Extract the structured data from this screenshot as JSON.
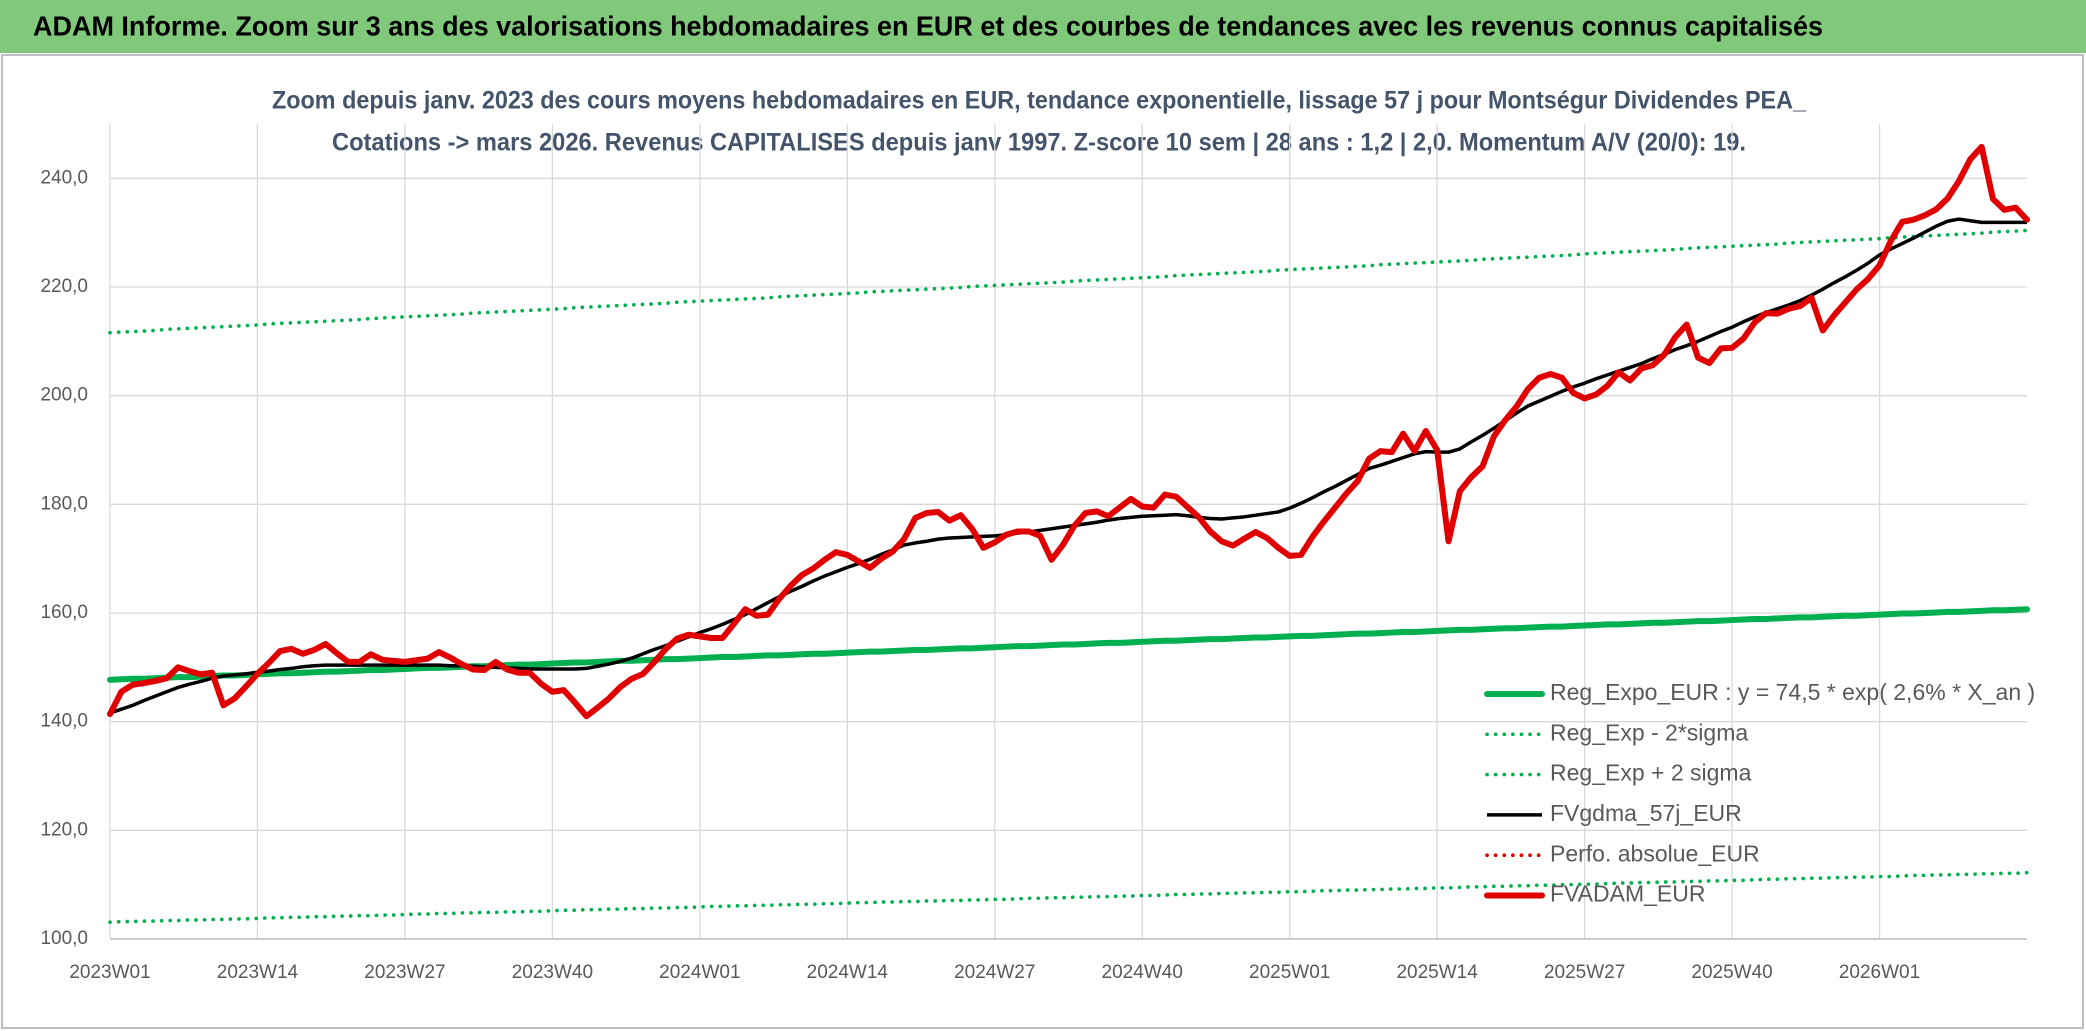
{
  "chart_data": {
    "type": "line",
    "title": "ADAM Informe. Zoom sur 3 ans des valorisations hebdomadaires en EUR et des courbes de tendances avec les revenus connus capitalisés",
    "subtitle": [
      "Zoom depuis janv. 2023 des cours moyens hebdomadaires en EUR, tendance exponentielle, lissage 57 j pour Montségur Dividendes PEA_",
      "Cotations -> mars 2026. Revenus CAPITALISES depuis janv 1997. Z-score 10 sem | 28 ans : 1,2 | 2,0. Momentum A/V (20/0): 19."
    ],
    "categories": [
      "2023W01",
      null,
      null,
      null,
      null,
      null,
      null,
      null,
      null,
      null,
      null,
      null,
      null,
      "2023W14",
      null,
      null,
      null,
      null,
      null,
      null,
      null,
      null,
      null,
      null,
      null,
      null,
      "2023W27",
      null,
      null,
      null,
      null,
      null,
      null,
      null,
      null,
      null,
      null,
      null,
      null,
      "2023W40",
      null,
      null,
      null,
      null,
      null,
      null,
      null,
      null,
      null,
      null,
      null,
      null,
      "2024W01",
      null,
      null,
      null,
      null,
      null,
      null,
      null,
      null,
      null,
      null,
      null,
      null,
      "2024W14",
      null,
      null,
      null,
      null,
      null,
      null,
      null,
      null,
      null,
      null,
      null,
      null,
      "2024W27",
      null,
      null,
      null,
      null,
      null,
      null,
      null,
      null,
      null,
      null,
      null,
      null,
      "2024W40",
      null,
      null,
      null,
      null,
      null,
      null,
      null,
      null,
      null,
      null,
      null,
      null,
      "2025W01",
      null,
      null,
      null,
      null,
      null,
      null,
      null,
      null,
      null,
      null,
      null,
      null,
      "2025W14",
      null,
      null,
      null,
      null,
      null,
      null,
      null,
      null,
      null,
      null,
      null,
      null,
      "2025W27",
      null,
      null,
      null,
      null,
      null,
      null,
      null,
      null,
      null,
      null,
      null,
      null,
      "2025W40",
      null,
      null,
      null,
      null,
      null,
      null,
      null,
      null,
      null,
      null,
      null,
      null,
      "2026W01",
      null,
      null,
      null,
      null,
      null,
      null,
      null,
      null,
      null,
      null,
      null,
      null,
      null
    ],
    "ylim": [
      100,
      250
    ],
    "yticks": [
      {
        "value": 100,
        "label": "100,0"
      },
      {
        "value": 120,
        "label": "120,0"
      },
      {
        "value": 140,
        "label": "140,0"
      },
      {
        "value": 160,
        "label": "160,0"
      },
      {
        "value": 180,
        "label": "180,0"
      },
      {
        "value": 200,
        "label": "200,0"
      },
      {
        "value": 220,
        "label": "220,0"
      },
      {
        "value": 240,
        "label": "240,0"
      }
    ],
    "grid": true,
    "legend": "bottom-right",
    "series": [
      {
        "name": "Reg_Expo_EUR : y = 74,5 * exp( 2,6% *  X_an )",
        "color": "#00b050",
        "line_style": "thick",
        "values": [
          147.7,
          147.8,
          147.9,
          147.9,
          148.0,
          148.1,
          148.2,
          148.2,
          148.3,
          148.4,
          148.5,
          148.5,
          148.6,
          148.7,
          148.8,
          148.9,
          148.9,
          149.0,
          149.1,
          149.2,
          149.2,
          149.3,
          149.4,
          149.5,
          149.5,
          149.6,
          149.7,
          149.8,
          149.9,
          149.9,
          150.0,
          150.1,
          150.2,
          150.2,
          150.3,
          150.4,
          150.5,
          150.5,
          150.6,
          150.7,
          150.8,
          150.9,
          150.9,
          151.0,
          151.1,
          151.2,
          151.2,
          151.3,
          151.4,
          151.5,
          151.5,
          151.6,
          151.7,
          151.8,
          151.9,
          151.9,
          152.0,
          152.1,
          152.2,
          152.2,
          152.3,
          152.4,
          152.5,
          152.5,
          152.6,
          152.7,
          152.8,
          152.9,
          152.9,
          153.0,
          153.1,
          153.2,
          153.2,
          153.3,
          153.4,
          153.5,
          153.5,
          153.6,
          153.7,
          153.8,
          153.9,
          153.9,
          154.0,
          154.1,
          154.2,
          154.2,
          154.3,
          154.4,
          154.5,
          154.5,
          154.6,
          154.7,
          154.8,
          154.9,
          154.9,
          155.0,
          155.1,
          155.2,
          155.2,
          155.3,
          155.4,
          155.5,
          155.5,
          155.6,
          155.7,
          155.8,
          155.8,
          155.9,
          156.0,
          156.1,
          156.2,
          156.2,
          156.3,
          156.4,
          156.5,
          156.5,
          156.6,
          156.7,
          156.8,
          156.9,
          156.9,
          157.0,
          157.1,
          157.2,
          157.2,
          157.3,
          157.4,
          157.5,
          157.5,
          157.6,
          157.7,
          157.8,
          157.9,
          157.9,
          158.0,
          158.1,
          158.2,
          158.2,
          158.3,
          158.4,
          158.5,
          158.5,
          158.6,
          158.7,
          158.8,
          158.9,
          158.9,
          159.0,
          159.1,
          159.2,
          159.2,
          159.3,
          159.4,
          159.5,
          159.5,
          159.6,
          159.7,
          159.8,
          159.9,
          159.9,
          160.0,
          160.1,
          160.2,
          160.2,
          160.3,
          160.4,
          160.5,
          160.5,
          160.6,
          160.7
        ]
      },
      {
        "name": "Reg_Exp - 2*sigma",
        "color": "#00b050",
        "line_style": "dotted",
        "values": [
          103.1,
          103.2,
          103.2,
          103.3,
          103.3,
          103.4,
          103.4,
          103.5,
          103.5,
          103.6,
          103.6,
          103.7,
          103.7,
          103.8,
          103.9,
          103.9,
          104.0,
          104.0,
          104.1,
          104.1,
          104.2,
          104.2,
          104.3,
          104.3,
          104.4,
          104.4,
          104.5,
          104.6,
          104.6,
          104.7,
          104.7,
          104.8,
          104.8,
          104.9,
          104.9,
          105.0,
          105.0,
          105.1,
          105.1,
          105.2,
          105.3,
          105.3,
          105.4,
          105.4,
          105.5,
          105.5,
          105.6,
          105.6,
          105.7,
          105.7,
          105.8,
          105.8,
          105.9,
          106.0,
          106.0,
          106.1,
          106.1,
          106.2,
          106.2,
          106.3,
          106.3,
          106.4,
          106.4,
          106.5,
          106.5,
          106.6,
          106.7,
          106.7,
          106.8,
          106.8,
          106.9,
          106.9,
          107.0,
          107.0,
          107.1,
          107.1,
          107.2,
          107.2,
          107.3,
          107.3,
          107.4,
          107.5,
          107.5,
          107.6,
          107.6,
          107.7,
          107.7,
          107.8,
          107.8,
          107.9,
          107.9,
          108.0,
          108.0,
          108.1,
          108.2,
          108.2,
          108.3,
          108.3,
          108.4,
          108.4,
          108.5,
          108.5,
          108.6,
          108.6,
          108.7,
          108.7,
          108.8,
          108.9,
          108.9,
          109.0,
          109.0,
          109.1,
          109.1,
          109.2,
          109.2,
          109.3,
          109.3,
          109.4,
          109.4,
          109.5,
          109.6,
          109.6,
          109.7,
          109.7,
          109.8,
          109.8,
          109.9,
          109.9,
          110.0,
          110.0,
          110.1,
          110.1,
          110.2,
          110.3,
          110.3,
          110.4,
          110.4,
          110.5,
          110.5,
          110.6,
          110.6,
          110.7,
          110.7,
          110.8,
          110.8,
          110.9,
          111.0,
          111.0,
          111.1,
          111.1,
          111.2,
          111.2,
          111.3,
          111.3,
          111.4,
          111.4,
          111.5,
          111.5,
          111.6,
          111.7,
          111.7,
          111.8,
          111.8,
          111.9,
          111.9,
          112.0,
          112.0,
          112.1,
          112.1,
          112.2
        ]
      },
      {
        "name": "Reg_Exp + 2 sigma",
        "color": "#00b050",
        "line_style": "dotted",
        "values": [
          211.6,
          211.7,
          211.8,
          211.9,
          212.0,
          212.2,
          212.3,
          212.4,
          212.5,
          212.6,
          212.7,
          212.8,
          212.9,
          213.0,
          213.2,
          213.3,
          213.4,
          213.5,
          213.6,
          213.7,
          213.8,
          213.9,
          214.0,
          214.2,
          214.3,
          214.4,
          214.5,
          214.6,
          214.7,
          214.8,
          214.9,
          215.0,
          215.2,
          215.3,
          215.4,
          215.5,
          215.6,
          215.7,
          215.8,
          215.9,
          216.0,
          216.2,
          216.3,
          216.4,
          216.5,
          216.6,
          216.7,
          216.8,
          216.9,
          217.0,
          217.2,
          217.3,
          217.4,
          217.5,
          217.6,
          217.7,
          217.8,
          217.9,
          218.0,
          218.2,
          218.3,
          218.4,
          218.5,
          218.6,
          218.7,
          218.8,
          218.9,
          219.1,
          219.2,
          219.3,
          219.4,
          219.5,
          219.6,
          219.7,
          219.8,
          219.9,
          220.1,
          220.2,
          220.3,
          220.4,
          220.5,
          220.6,
          220.7,
          220.8,
          220.9,
          221.1,
          221.2,
          221.3,
          221.4,
          221.5,
          221.6,
          221.7,
          221.8,
          221.9,
          222.1,
          222.2,
          222.3,
          222.4,
          222.5,
          222.6,
          222.7,
          222.8,
          222.9,
          223.1,
          223.2,
          223.3,
          223.4,
          223.5,
          223.6,
          223.7,
          223.8,
          223.9,
          224.1,
          224.2,
          224.3,
          224.4,
          224.5,
          224.6,
          224.7,
          224.8,
          224.9,
          225.1,
          225.2,
          225.3,
          225.4,
          225.5,
          225.6,
          225.7,
          225.8,
          225.9,
          226.1,
          226.2,
          226.3,
          226.4,
          226.5,
          226.6,
          226.7,
          226.8,
          226.9,
          227.1,
          227.2,
          227.3,
          227.4,
          227.5,
          227.6,
          227.7,
          227.8,
          227.9,
          228.1,
          228.2,
          228.3,
          228.4,
          228.5,
          228.6,
          228.7,
          228.8,
          228.9,
          229.1,
          229.2,
          229.3,
          229.4,
          229.5,
          229.6,
          229.7,
          229.8,
          229.9,
          230.1,
          230.2,
          230.3,
          230.4
        ]
      },
      {
        "name": "FVgdma_57j_EUR",
        "color": "#000000",
        "line_style": "solid",
        "values": [
          141.6,
          142.3,
          143,
          143.9,
          144.7,
          145.5,
          146.3,
          146.9,
          147.4,
          148,
          148.4,
          148.6,
          148.8,
          149.1,
          149.3,
          149.6,
          149.8,
          150.1,
          150.3,
          150.4,
          150.4,
          150.4,
          150.4,
          150.4,
          150.4,
          150.4,
          150.4,
          150.4,
          150.4,
          150.4,
          150.3,
          150.3,
          150.2,
          150.1,
          150,
          149.9,
          149.8,
          149.7,
          149.7,
          149.7,
          149.7,
          149.7,
          149.8,
          150.2,
          150.6,
          151.1,
          151.7,
          152.5,
          153.3,
          154,
          154.8,
          155.6,
          156.4,
          157.1,
          157.9,
          158.8,
          159.7,
          160.8,
          161.9,
          163,
          164,
          164.9,
          165.9,
          166.8,
          167.6,
          168.4,
          169.1,
          169.9,
          170.8,
          171.6,
          172.5,
          172.9,
          173.2,
          173.6,
          173.8,
          173.9,
          174,
          174.1,
          174.2,
          174.4,
          174.7,
          174.9,
          175.2,
          175.5,
          175.8,
          176.1,
          176.4,
          176.7,
          177.1,
          177.4,
          177.6,
          177.8,
          177.9,
          178,
          178.1,
          177.9,
          177.6,
          177.4,
          177.3,
          177.5,
          177.7,
          178,
          178.3,
          178.6,
          179.3,
          180.2,
          181.2,
          182.3,
          183.3,
          184.4,
          185.5,
          186.6,
          187.2,
          187.9,
          188.6,
          189.3,
          189.7,
          189.6,
          189.6,
          190.2,
          191.5,
          192.7,
          194,
          195.4,
          196.8,
          198.1,
          199,
          199.9,
          200.8,
          201.6,
          202.3,
          203.1,
          203.8,
          204.5,
          205.2,
          205.9,
          206.8,
          207.6,
          208.5,
          209.2,
          210,
          210.9,
          211.8,
          212.6,
          213.6,
          214.5,
          215.3,
          216,
          216.7,
          217.5,
          218.5,
          219.6,
          220.8,
          221.9,
          223.1,
          224.4,
          225.9,
          227,
          228,
          229,
          230.1,
          231.2,
          232.1,
          232.5,
          232.2,
          231.9,
          231.9,
          231.9,
          231.9,
          231.9
        ]
      },
      {
        "name": "Perfo. absolue_EUR",
        "color": "#e00000",
        "line_style": "dotted"
      },
      {
        "name": "FVADAM_EUR",
        "color": "#e00000",
        "line_style": "thick",
        "values": [
          141.4,
          145.5,
          146.8,
          147.1,
          147.5,
          148,
          150,
          149.3,
          148.7,
          149,
          143,
          144.3,
          146.5,
          148.8,
          150.8,
          153,
          153.4,
          152.5,
          153.2,
          154.3,
          152.6,
          151,
          151,
          152.4,
          151.4,
          151.2,
          151,
          151.3,
          151.6,
          152.8,
          151.8,
          150.6,
          149.6,
          149.5,
          151,
          149.6,
          149,
          149,
          147,
          145.5,
          145.8,
          143.5,
          141,
          142.6,
          144.3,
          146.4,
          147.9,
          148.8,
          151,
          153.4,
          155.3,
          156,
          155.7,
          155.4,
          155.4,
          158,
          160.7,
          159.5,
          159.7,
          162.6,
          165,
          167,
          168.2,
          169.8,
          171.2,
          170.7,
          169.5,
          168.3,
          170,
          171.3,
          173.6,
          177.5,
          178.4,
          178.6,
          177,
          178,
          175.5,
          172,
          173,
          174.4,
          175,
          175,
          174.2,
          169.8,
          172.5,
          176,
          178.4,
          178.7,
          177.8,
          179.4,
          181,
          179.6,
          179.4,
          181.8,
          181.4,
          179.5,
          177.6,
          175,
          173.2,
          172.4,
          173.7,
          174.9,
          173.8,
          172,
          170.5,
          170.7,
          174,
          176.8,
          179.4,
          182,
          184.3,
          188.4,
          189.8,
          189.6,
          193,
          189.8,
          193.5,
          190,
          173.2,
          182.4,
          185,
          187,
          192.5,
          195.5,
          198,
          201.2,
          203.3,
          204,
          203.3,
          200.5,
          199.5,
          200.2,
          201.8,
          204.3,
          202.8,
          205,
          205.6,
          207.5,
          210.8,
          213.1,
          207,
          206,
          208.7,
          208.8,
          210.5,
          213.5,
          215.2,
          215.1,
          216,
          216.5,
          218,
          212,
          214.8,
          217.2,
          219.6,
          221.5,
          224,
          228.5,
          232,
          232.4,
          233.2,
          234.3,
          236.3,
          239.5,
          243.5,
          245.8,
          236.2,
          234.2,
          234.6,
          232.4
        ]
      }
    ]
  }
}
